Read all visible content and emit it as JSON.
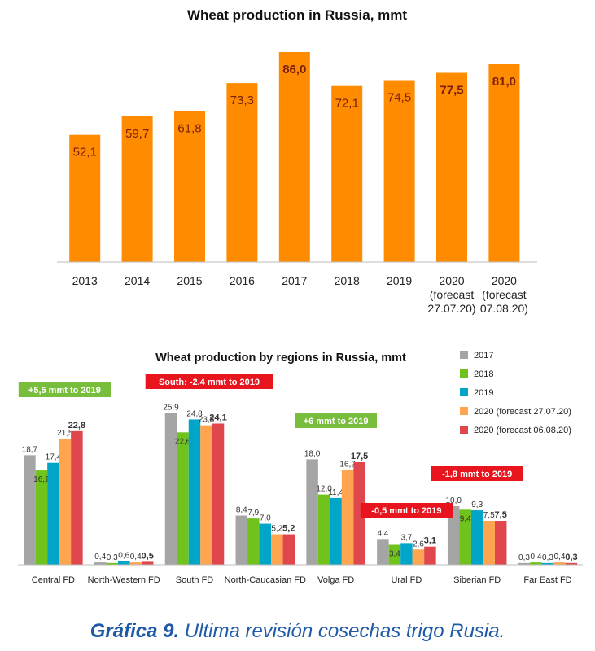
{
  "chart_data": [
    {
      "type": "bar",
      "title": "Wheat production in Russia, mmt",
      "categories": [
        "2013",
        "2014",
        "2015",
        "2016",
        "2017",
        "2018",
        "2019",
        "2020 (forecast 27.07.20)",
        "2020 (forecast 07.08.20)"
      ],
      "category_lines": [
        [
          "2013"
        ],
        [
          "2014"
        ],
        [
          "2015"
        ],
        [
          "2016"
        ],
        [
          "2017"
        ],
        [
          "2018"
        ],
        [
          "2019"
        ],
        [
          "2020",
          "(forecast",
          "27.07.20)"
        ],
        [
          "2020",
          "(forecast",
          "07.08.20)"
        ]
      ],
      "values": [
        52.1,
        59.7,
        61.8,
        73.3,
        86.0,
        72.1,
        74.5,
        77.5,
        81.0
      ],
      "labels": [
        "52,1",
        "59,7",
        "61,8",
        "73,3",
        "86,0",
        "72,1",
        "74,5",
        "77,5",
        "81,0"
      ],
      "bold_labels": [
        false,
        false,
        false,
        false,
        true,
        false,
        false,
        true,
        true
      ],
      "color": "#ff8c00",
      "label_color": "#7a1f0a",
      "ylim": [
        0,
        90
      ]
    },
    {
      "type": "bar",
      "title": "Wheat production by regions in Russia, mmt",
      "categories": [
        "Central FD",
        "North-Western FD",
        "South FD",
        "North-Caucasian FD",
        "Volga FD",
        "Ural FD",
        "Siberian FD",
        "Far East FD"
      ],
      "series": [
        {
          "name": "2017",
          "color": "#a5a5a5",
          "values": [
            18.7,
            0.4,
            25.9,
            8.4,
            18.0,
            4.4,
            10.0,
            0.3
          ],
          "labels": [
            "18,7",
            "0,4",
            "25,9",
            "8,4",
            "18,0",
            "4,4",
            "10,0",
            "0,3"
          ]
        },
        {
          "name": "2018",
          "color": "#70c21c",
          "values": [
            16.1,
            0.3,
            22.6,
            7.9,
            12.0,
            3.4,
            9.4,
            0.4
          ],
          "labels": [
            "16,1",
            "0,3",
            "22,6",
            "7,9",
            "12,0",
            "3,4",
            "9,4",
            "0,4"
          ]
        },
        {
          "name": "2019",
          "color": "#00a5c8",
          "values": [
            17.4,
            0.6,
            24.8,
            7.0,
            11.4,
            3.7,
            9.3,
            0.3
          ],
          "labels": [
            "17,4",
            "0,6",
            "24,8",
            "7,0",
            "11,4",
            "3,7",
            "9,3",
            "0,3"
          ]
        },
        {
          "name": "2020 (forecast 27.07.20)",
          "color": "#ffa54f",
          "values": [
            21.5,
            0.4,
            23.8,
            5.2,
            16.2,
            2.6,
            7.5,
            0.4
          ],
          "labels": [
            "21,5",
            "0,4",
            "23,8",
            "5,2",
            "16,2",
            "2,6",
            "7,5",
            "0,4"
          ]
        },
        {
          "name": "2020 (forecast 06.08.20)",
          "color": "#e0474c",
          "values": [
            22.8,
            0.5,
            24.1,
            5.2,
            17.5,
            3.1,
            7.5,
            0.3
          ],
          "labels": [
            "22,8",
            "0,5",
            "24,1",
            "5,2",
            "17,5",
            "3,1",
            "7,5",
            "0,3"
          ]
        }
      ],
      "label_below": [
        [
          false,
          true,
          false,
          false,
          false
        ],
        [
          false,
          false,
          false,
          false,
          false
        ],
        [
          false,
          true,
          false,
          false,
          false
        ],
        [
          false,
          false,
          false,
          false,
          false
        ],
        [
          false,
          false,
          false,
          false,
          false
        ],
        [
          false,
          true,
          false,
          false,
          false
        ],
        [
          false,
          true,
          false,
          false,
          false
        ],
        [
          false,
          false,
          false,
          false,
          false
        ]
      ],
      "ylim": [
        0,
        30
      ],
      "legend_position": "top-right",
      "annotations": [
        {
          "text": "+5,5 mmt to 2019",
          "category": "Central FD",
          "color": "#78be3c"
        },
        {
          "text": "South: -2.4 mmt to 2019",
          "category": "South FD",
          "color": "#e8141e"
        },
        {
          "text": "+6 mmt to 2019",
          "category": "Volga FD",
          "color": "#78be3c"
        },
        {
          "text": "-0,5 mmt to 2019",
          "category": "Ural FD",
          "color": "#e8141e"
        },
        {
          "text": "-1,8 mmt to 2019",
          "category": "Siberian FD",
          "color": "#e8141e"
        }
      ]
    }
  ],
  "caption": {
    "prefix": "Gráfica 9.",
    "text": " Ultima revisión cosechas trigo Rusia."
  }
}
